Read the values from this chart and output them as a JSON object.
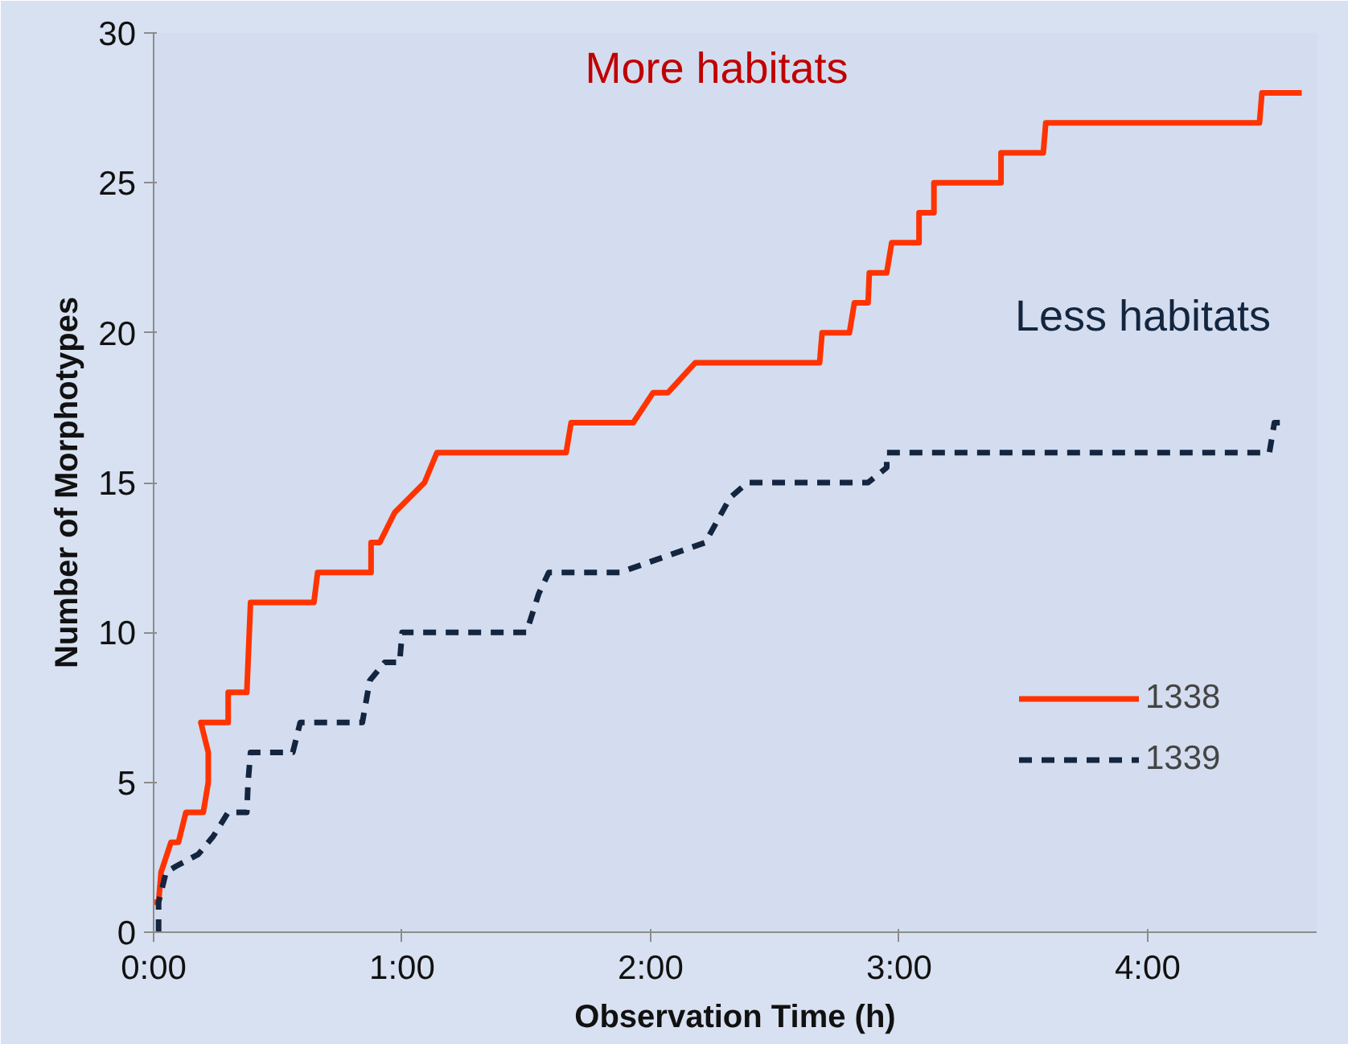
{
  "chart_data": {
    "type": "line",
    "xlabel": "Observation Time (h)",
    "ylabel": "Number of Morphotypes",
    "xlim": [
      0,
      4.68
    ],
    "ylim": [
      0,
      30
    ],
    "xticks": [
      {
        "value": 0,
        "label": "0:00"
      },
      {
        "value": 1,
        "label": "1:00"
      },
      {
        "value": 2,
        "label": "2:00"
      },
      {
        "value": 3,
        "label": "3:00"
      },
      {
        "value": 4,
        "label": "4:00"
      }
    ],
    "yticks": [
      0,
      5,
      10,
      15,
      20,
      25,
      30
    ],
    "grid": false,
    "legend": "right",
    "annotations": [
      "More habitats",
      "Less habitats"
    ],
    "series": [
      {
        "name": "1338",
        "color": "#ff3300",
        "line_style": "solid",
        "x": [
          0,
          0.02,
          0.03,
          0.07,
          0.1,
          0.13,
          0.2,
          0.22,
          0.22,
          0.19,
          0.3,
          0.3,
          0.375,
          0.38,
          0.39,
          0.645,
          0.66,
          0.875,
          0.875,
          0.91,
          0.97,
          1.09,
          1.14,
          1.645,
          1.66,
          1.68,
          1.93,
          2.01,
          2.07,
          2.18,
          2.68,
          2.69,
          2.8,
          2.82,
          2.875,
          2.88,
          2.95,
          2.97,
          3.08,
          3.08,
          3.14,
          3.14,
          3.41,
          3.41,
          3.58,
          3.59,
          4.45,
          4.46,
          4.62
        ],
        "values": [
          1,
          1,
          2,
          3,
          3,
          4,
          4,
          5,
          6,
          7,
          7,
          8,
          8,
          9,
          11,
          11,
          12,
          12,
          13,
          13,
          14,
          15,
          16,
          16,
          16,
          17,
          17,
          18,
          18,
          19,
          19,
          20,
          20,
          21,
          21,
          22,
          22,
          23,
          23,
          24,
          24,
          25,
          25,
          26,
          26,
          27,
          27,
          28,
          28
        ]
      },
      {
        "name": "1339",
        "color": "#14253f",
        "line_style": "dashed",
        "x": [
          0.02,
          0.02,
          0.05,
          0.09,
          0.18,
          0.24,
          0.3,
          0.375,
          0.38,
          0.39,
          0.56,
          0.59,
          0.84,
          0.87,
          0.93,
          0.99,
          1.0,
          1.5,
          1.55,
          1.59,
          1.875,
          2.22,
          2.32,
          2.39,
          2.875,
          2.95,
          2.95,
          4.49,
          4.51,
          4.56
        ],
        "values": [
          0,
          1,
          2,
          2.2,
          2.6,
          3.2,
          4,
          4,
          5,
          6,
          6,
          7,
          7,
          8.4,
          9,
          9,
          10,
          10,
          11.3,
          12,
          12,
          13,
          14.5,
          15,
          15,
          15.5,
          16,
          16,
          17,
          17
        ]
      }
    ]
  }
}
